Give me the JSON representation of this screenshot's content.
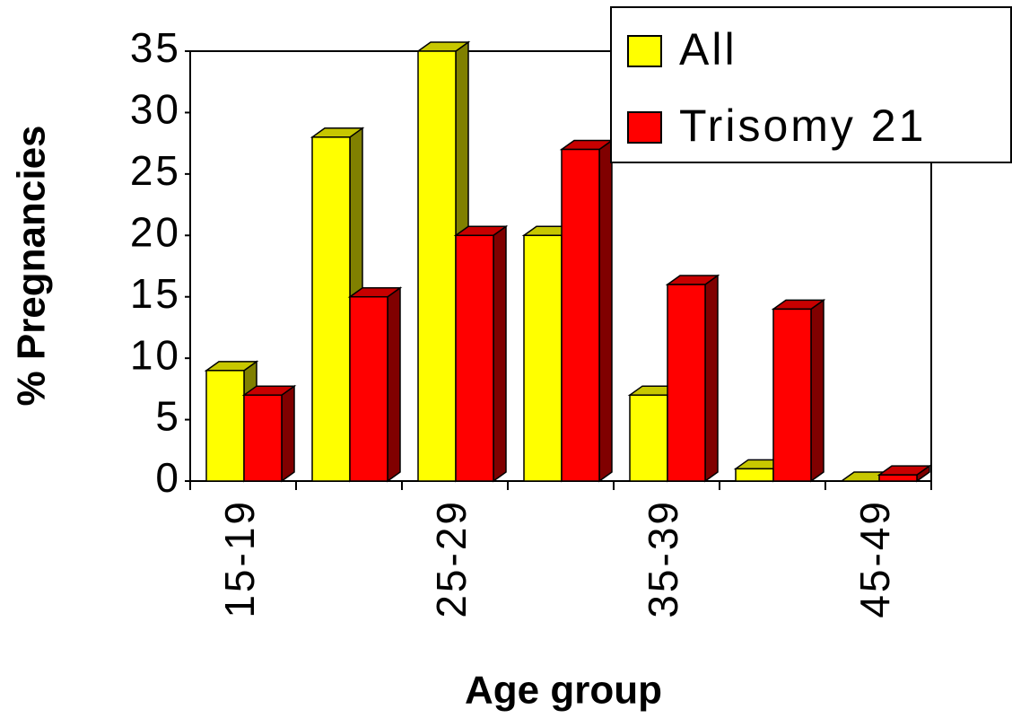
{
  "chart_data": {
    "type": "bar3d",
    "xlabel": "Age group",
    "ylabel": "% Pregnancies",
    "categories": [
      "15-19",
      null,
      "25-29",
      null,
      "35-39",
      null,
      "45-49"
    ],
    "series": [
      {
        "name": "All",
        "color": "#ffff00",
        "values": [
          9,
          28,
          35,
          20,
          7,
          1,
          0
        ]
      },
      {
        "name": "Trisomy 21",
        "color": "#ff0000",
        "values": [
          7,
          15,
          20,
          27,
          16,
          14,
          0.5
        ]
      }
    ],
    "ylim": [
      0,
      35
    ],
    "yticks": [
      0,
      5,
      10,
      15,
      20,
      25,
      30,
      35
    ],
    "grid": false,
    "legend": "upper right"
  }
}
